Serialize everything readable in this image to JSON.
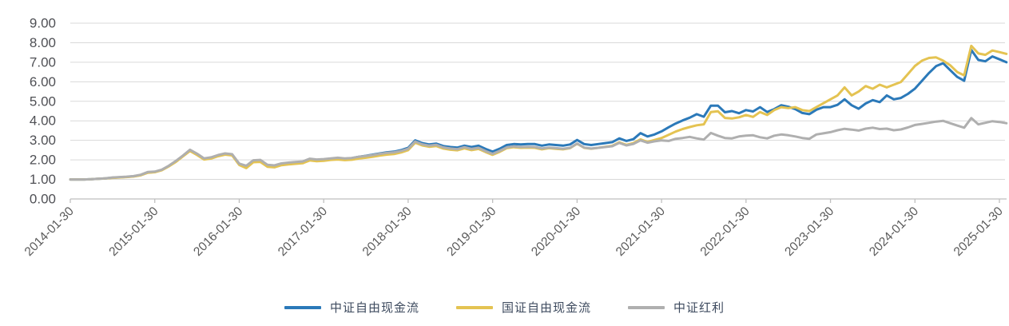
{
  "chart_data": {
    "type": "line",
    "title": "",
    "x_frequency": "monthly",
    "x_start": "2014-01",
    "x_end": "2025-02",
    "x_tick_labels": [
      "2014-01-30",
      "2015-01-30",
      "2016-01-30",
      "2017-01-30",
      "2018-01-30",
      "2019-01-30",
      "2020-01-30",
      "2021-01-30",
      "2022-01-30",
      "2023-01-30",
      "2024-01-30",
      "2025-01-30"
    ],
    "y_tick_labels": [
      "9.00",
      "8.00",
      "7.00",
      "6.00",
      "5.00",
      "4.00",
      "3.00",
      "2.00",
      "1.00",
      "0.00"
    ],
    "ylim": [
      0,
      9
    ],
    "grid": true,
    "legend_position": "bottom",
    "series": [
      {
        "name": "中证自由现金流",
        "color": "#2B79B9",
        "values": [
          1.0,
          1.0,
          1.0,
          1.01,
          1.03,
          1.05,
          1.09,
          1.11,
          1.13,
          1.16,
          1.22,
          1.35,
          1.38,
          1.48,
          1.68,
          1.92,
          2.2,
          2.5,
          2.28,
          2.05,
          2.1,
          2.22,
          2.3,
          2.26,
          1.78,
          1.66,
          1.94,
          1.96,
          1.71,
          1.68,
          1.79,
          1.83,
          1.86,
          1.89,
          2.03,
          1.99,
          2.01,
          2.06,
          2.09,
          2.06,
          2.09,
          2.16,
          2.21,
          2.27,
          2.33,
          2.39,
          2.42,
          2.5,
          2.62,
          3.0,
          2.86,
          2.79,
          2.83,
          2.71,
          2.66,
          2.63,
          2.73,
          2.66,
          2.73,
          2.56,
          2.42,
          2.57,
          2.76,
          2.81,
          2.79,
          2.81,
          2.81,
          2.73,
          2.79,
          2.76,
          2.73,
          2.79,
          3.02,
          2.81,
          2.76,
          2.81,
          2.86,
          2.91,
          3.1,
          2.97,
          3.06,
          3.37,
          3.2,
          3.3,
          3.46,
          3.67,
          3.86,
          4.02,
          4.16,
          4.34,
          4.21,
          4.78,
          4.78,
          4.44,
          4.5,
          4.39,
          4.55,
          4.48,
          4.7,
          4.45,
          4.6,
          4.8,
          4.72,
          4.6,
          4.4,
          4.34,
          4.57,
          4.7,
          4.7,
          4.82,
          5.1,
          4.8,
          4.62,
          4.89,
          5.06,
          4.96,
          5.3,
          5.1,
          5.17,
          5.38,
          5.65,
          6.05,
          6.45,
          6.8,
          6.95,
          6.6,
          6.25,
          6.05,
          7.63,
          7.12,
          7.05,
          7.3,
          7.15,
          7.0
        ]
      },
      {
        "name": "国证自由现金流",
        "color": "#E4C352",
        "values": [
          1.0,
          1.0,
          1.0,
          1.01,
          1.03,
          1.05,
          1.08,
          1.1,
          1.12,
          1.15,
          1.21,
          1.34,
          1.37,
          1.47,
          1.67,
          1.9,
          2.18,
          2.46,
          2.25,
          2.02,
          2.07,
          2.19,
          2.27,
          2.23,
          1.74,
          1.58,
          1.88,
          1.9,
          1.65,
          1.62,
          1.73,
          1.77,
          1.8,
          1.83,
          1.97,
          1.93,
          1.95,
          2.0,
          2.02,
          1.99,
          2.01,
          2.07,
          2.11,
          2.16,
          2.22,
          2.27,
          2.3,
          2.38,
          2.5,
          2.88,
          2.74,
          2.67,
          2.71,
          2.58,
          2.52,
          2.49,
          2.59,
          2.5,
          2.56,
          2.4,
          2.26,
          2.41,
          2.6,
          2.65,
          2.62,
          2.63,
          2.62,
          2.54,
          2.6,
          2.57,
          2.54,
          2.6,
          2.83,
          2.62,
          2.57,
          2.62,
          2.67,
          2.72,
          2.9,
          2.77,
          2.86,
          3.05,
          2.92,
          3.02,
          3.12,
          3.28,
          3.45,
          3.58,
          3.68,
          3.77,
          3.82,
          4.45,
          4.49,
          4.15,
          4.12,
          4.18,
          4.3,
          4.2,
          4.45,
          4.3,
          4.55,
          4.7,
          4.65,
          4.7,
          4.55,
          4.5,
          4.7,
          4.9,
          5.1,
          5.3,
          5.71,
          5.3,
          5.5,
          5.78,
          5.64,
          5.85,
          5.71,
          5.85,
          5.99,
          6.4,
          6.81,
          7.08,
          7.22,
          7.25,
          7.08,
          6.85,
          6.5,
          6.33,
          7.84,
          7.45,
          7.38,
          7.6,
          7.52,
          7.43
        ]
      },
      {
        "name": "中证红利",
        "color": "#AFAFAF",
        "values": [
          1.0,
          1.0,
          1.0,
          1.01,
          1.03,
          1.06,
          1.1,
          1.12,
          1.14,
          1.17,
          1.24,
          1.38,
          1.4,
          1.5,
          1.7,
          1.95,
          2.22,
          2.52,
          2.32,
          2.08,
          2.13,
          2.25,
          2.33,
          2.29,
          1.81,
          1.7,
          1.98,
          2.0,
          1.75,
          1.72,
          1.82,
          1.86,
          1.89,
          1.92,
          2.06,
          2.02,
          2.04,
          2.08,
          2.11,
          2.08,
          2.1,
          2.16,
          2.2,
          2.25,
          2.31,
          2.36,
          2.39,
          2.46,
          2.57,
          2.94,
          2.8,
          2.73,
          2.77,
          2.64,
          2.58,
          2.55,
          2.65,
          2.56,
          2.62,
          2.45,
          2.31,
          2.46,
          2.64,
          2.69,
          2.66,
          2.67,
          2.66,
          2.58,
          2.63,
          2.6,
          2.57,
          2.62,
          2.84,
          2.63,
          2.58,
          2.62,
          2.66,
          2.7,
          2.87,
          2.74,
          2.82,
          3.0,
          2.88,
          2.95,
          3.0,
          2.97,
          3.08,
          3.12,
          3.18,
          3.1,
          3.04,
          3.38,
          3.24,
          3.12,
          3.1,
          3.2,
          3.24,
          3.26,
          3.16,
          3.1,
          3.24,
          3.3,
          3.26,
          3.2,
          3.12,
          3.08,
          3.3,
          3.36,
          3.42,
          3.52,
          3.59,
          3.55,
          3.5,
          3.6,
          3.65,
          3.58,
          3.6,
          3.52,
          3.56,
          3.66,
          3.79,
          3.84,
          3.9,
          3.96,
          4.0,
          3.88,
          3.76,
          3.65,
          4.14,
          3.82,
          3.9,
          3.98,
          3.94,
          3.88
        ]
      }
    ],
    "axis_colors": {
      "gridline": "#D9D9D9",
      "axis_line": "#BFBFBF",
      "y_label": "#4F5055",
      "x_label": "#5A5A5A"
    }
  },
  "legend": {
    "items": [
      {
        "label": "中证自由现金流"
      },
      {
        "label": "国证自由现金流"
      },
      {
        "label": "中证红利"
      }
    ]
  }
}
